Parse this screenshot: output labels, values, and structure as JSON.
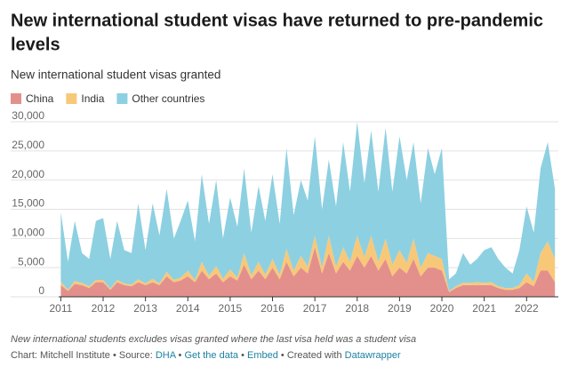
{
  "chart_data": {
    "type": "stacked-area",
    "title": [
      "New international student visas have returned to pre-pandemic",
      "levels"
    ],
    "subtitle": "New international student visas granted",
    "note": "New international students excludes visas granted where the last visa held was a student visa",
    "credits": {
      "chart": "Chart: Mitchell Institute",
      "separator": "•",
      "source_prefix": "Source:",
      "source": "DHA",
      "get_data": "Get the data",
      "embed": "Embed",
      "created_with": "Created with",
      "tool": "Datawrapper"
    },
    "x": [
      2011,
      2011.17,
      2011.33,
      2011.5,
      2011.67,
      2011.83,
      2012,
      2012.17,
      2012.33,
      2012.5,
      2012.67,
      2012.83,
      2013,
      2013.17,
      2013.33,
      2013.5,
      2013.67,
      2013.83,
      2014,
      2014.17,
      2014.33,
      2014.5,
      2014.67,
      2014.83,
      2015,
      2015.17,
      2015.33,
      2015.5,
      2015.67,
      2015.83,
      2016,
      2016.17,
      2016.33,
      2016.5,
      2016.67,
      2016.83,
      2017,
      2017.17,
      2017.33,
      2017.5,
      2017.67,
      2017.83,
      2018,
      2018.17,
      2018.33,
      2018.5,
      2018.67,
      2018.83,
      2019,
      2019.17,
      2019.33,
      2019.5,
      2019.67,
      2019.83,
      2020,
      2020.17,
      2020.33,
      2020.5,
      2020.67,
      2020.83,
      2021,
      2021.17,
      2021.33,
      2021.5,
      2021.67,
      2021.83,
      2022,
      2022.17,
      2022.33,
      2022.5,
      2022.67
    ],
    "series": [
      {
        "name": "China",
        "color": "#e3908c",
        "values": [
          2000,
          1000,
          2200,
          2000,
          1500,
          2500,
          2500,
          1200,
          2500,
          2000,
          1800,
          2500,
          2000,
          2500,
          2000,
          3500,
          2500,
          2800,
          3500,
          2500,
          4500,
          3000,
          4000,
          2500,
          3500,
          2800,
          5500,
          3000,
          4500,
          3000,
          5000,
          3000,
          6000,
          3500,
          5000,
          4000,
          8500,
          4000,
          7500,
          4000,
          6000,
          4500,
          7000,
          5000,
          7000,
          4500,
          6500,
          3500,
          5000,
          4000,
          6500,
          3500,
          5000,
          5000,
          4500,
          800,
          1500,
          2000,
          2000,
          2000,
          2000,
          2000,
          1500,
          1200,
          1200,
          1500,
          2500,
          1800,
          4500,
          4500,
          2500
        ]
      },
      {
        "name": "India",
        "color": "#f8c879",
        "values": [
          600,
          200,
          500,
          400,
          300,
          400,
          400,
          200,
          400,
          300,
          300,
          500,
          300,
          600,
          300,
          800,
          400,
          500,
          1000,
          400,
          1500,
          600,
          1300,
          600,
          1200,
          500,
          2000,
          700,
          1500,
          800,
          1500,
          800,
          2200,
          1000,
          2000,
          1200,
          2000,
          1000,
          3000,
          1200,
          2500,
          1500,
          3500,
          1800,
          3500,
          1500,
          3500,
          2000,
          3000,
          1800,
          3500,
          1500,
          2500,
          2000,
          2000,
          200,
          300,
          400,
          400,
          500,
          400,
          500,
          300,
          300,
          300,
          500,
          1500,
          800,
          3000,
          5000,
          4000
        ]
      },
      {
        "name": "Other countries",
        "color": "#8dd0e1",
        "values": [
          11900,
          4800,
          10300,
          5100,
          4700,
          10100,
          10600,
          5100,
          10100,
          5700,
          5400,
          13000,
          5700,
          12900,
          8200,
          14200,
          7100,
          9700,
          12000,
          6600,
          15000,
          8900,
          14700,
          6900,
          12300,
          8700,
          14500,
          7300,
          13000,
          9200,
          14500,
          8700,
          17300,
          9500,
          13000,
          11300,
          17000,
          10000,
          13000,
          10300,
          18000,
          12000,
          19500,
          12700,
          18000,
          12000,
          19000,
          12500,
          19500,
          14200,
          16500,
          11000,
          18000,
          14000,
          19000,
          2000,
          2200,
          5100,
          3100,
          4000,
          5600,
          6000,
          4700,
          3500,
          2500,
          6000,
          11500,
          8400,
          14500,
          17000,
          12000
        ]
      }
    ],
    "xlim": [
      2010.95,
      2022.75
    ],
    "xticks": [
      2011,
      2012,
      2013,
      2014,
      2015,
      2016,
      2017,
      2018,
      2019,
      2020,
      2021,
      2022
    ],
    "ylim": [
      0,
      30000
    ],
    "yticks": [
      0,
      {
        "value": 5000,
        "label": "5,000"
      },
      {
        "value": 10000,
        "label": "10,000"
      },
      {
        "value": 15000,
        "label": "15,000"
      },
      {
        "value": 20000,
        "label": "20,000"
      },
      {
        "value": 25000,
        "label": "25,000"
      },
      {
        "value": 30000,
        "label": "30,000"
      }
    ],
    "grid": true
  }
}
